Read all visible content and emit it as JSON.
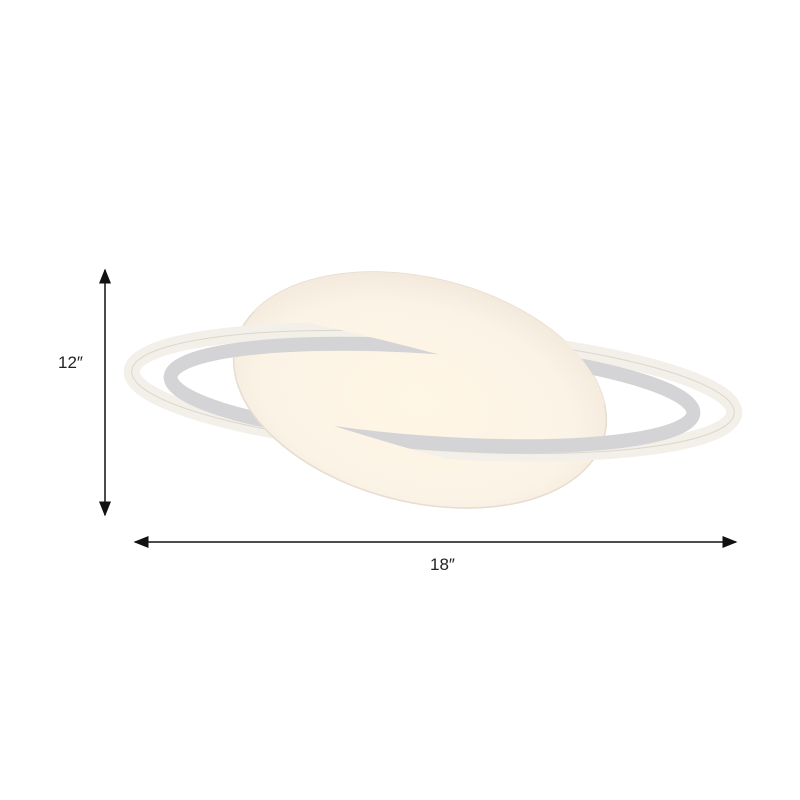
{
  "product": {
    "description_icon": "saturn-planet-ceiling-lamp",
    "colors": {
      "body": "#fbf7f0",
      "ring_band": "#d4d4d6",
      "glow": "#fff3da"
    }
  },
  "dimensions": {
    "height_label": "12″",
    "width_label": "18″"
  }
}
